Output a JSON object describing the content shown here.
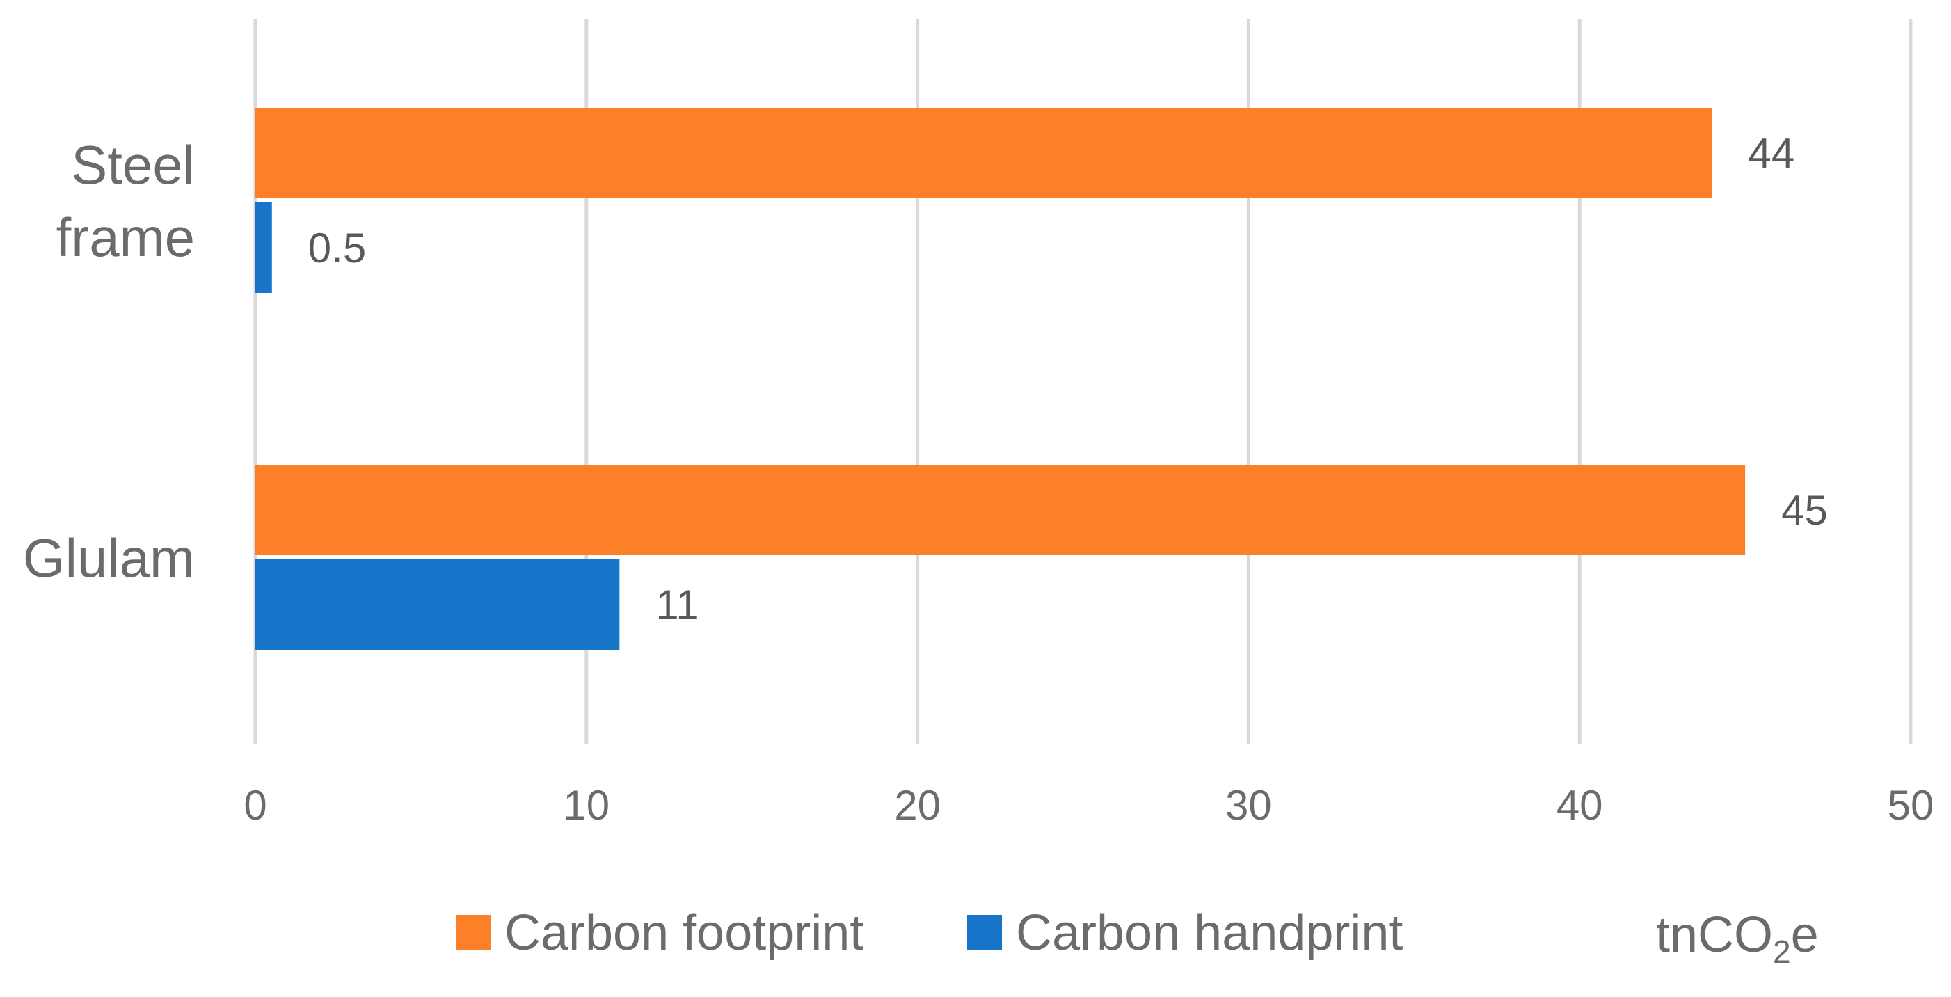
{
  "chart_data": {
    "type": "bar",
    "orientation": "horizontal",
    "categories": [
      "Steel frame",
      "Glulam"
    ],
    "category_lines": [
      [
        "Steel",
        "frame"
      ],
      [
        "Glulam"
      ]
    ],
    "series": [
      {
        "name": "Carbon footprint",
        "values": [
          44,
          45
        ],
        "labels": [
          "44",
          "45"
        ]
      },
      {
        "name": "Carbon handprint",
        "values": [
          0.5,
          11
        ],
        "labels": [
          "0.5",
          "11"
        ]
      }
    ],
    "xlim": [
      0,
      50
    ],
    "xticks": [
      0,
      10,
      20,
      30,
      40,
      50
    ],
    "xtick_labels": [
      "0",
      "10",
      "20",
      "30",
      "40",
      "50"
    ],
    "xlabel_main": "tnCO",
    "xlabel_sub": "2",
    "xlabel_tail": "e",
    "grid": "vertical",
    "legend": "bottom",
    "colors": {
      "Carbon footprint": "#fd7f27",
      "Carbon handprint": "#1874c9",
      "grid": "#d9d9d9"
    }
  }
}
